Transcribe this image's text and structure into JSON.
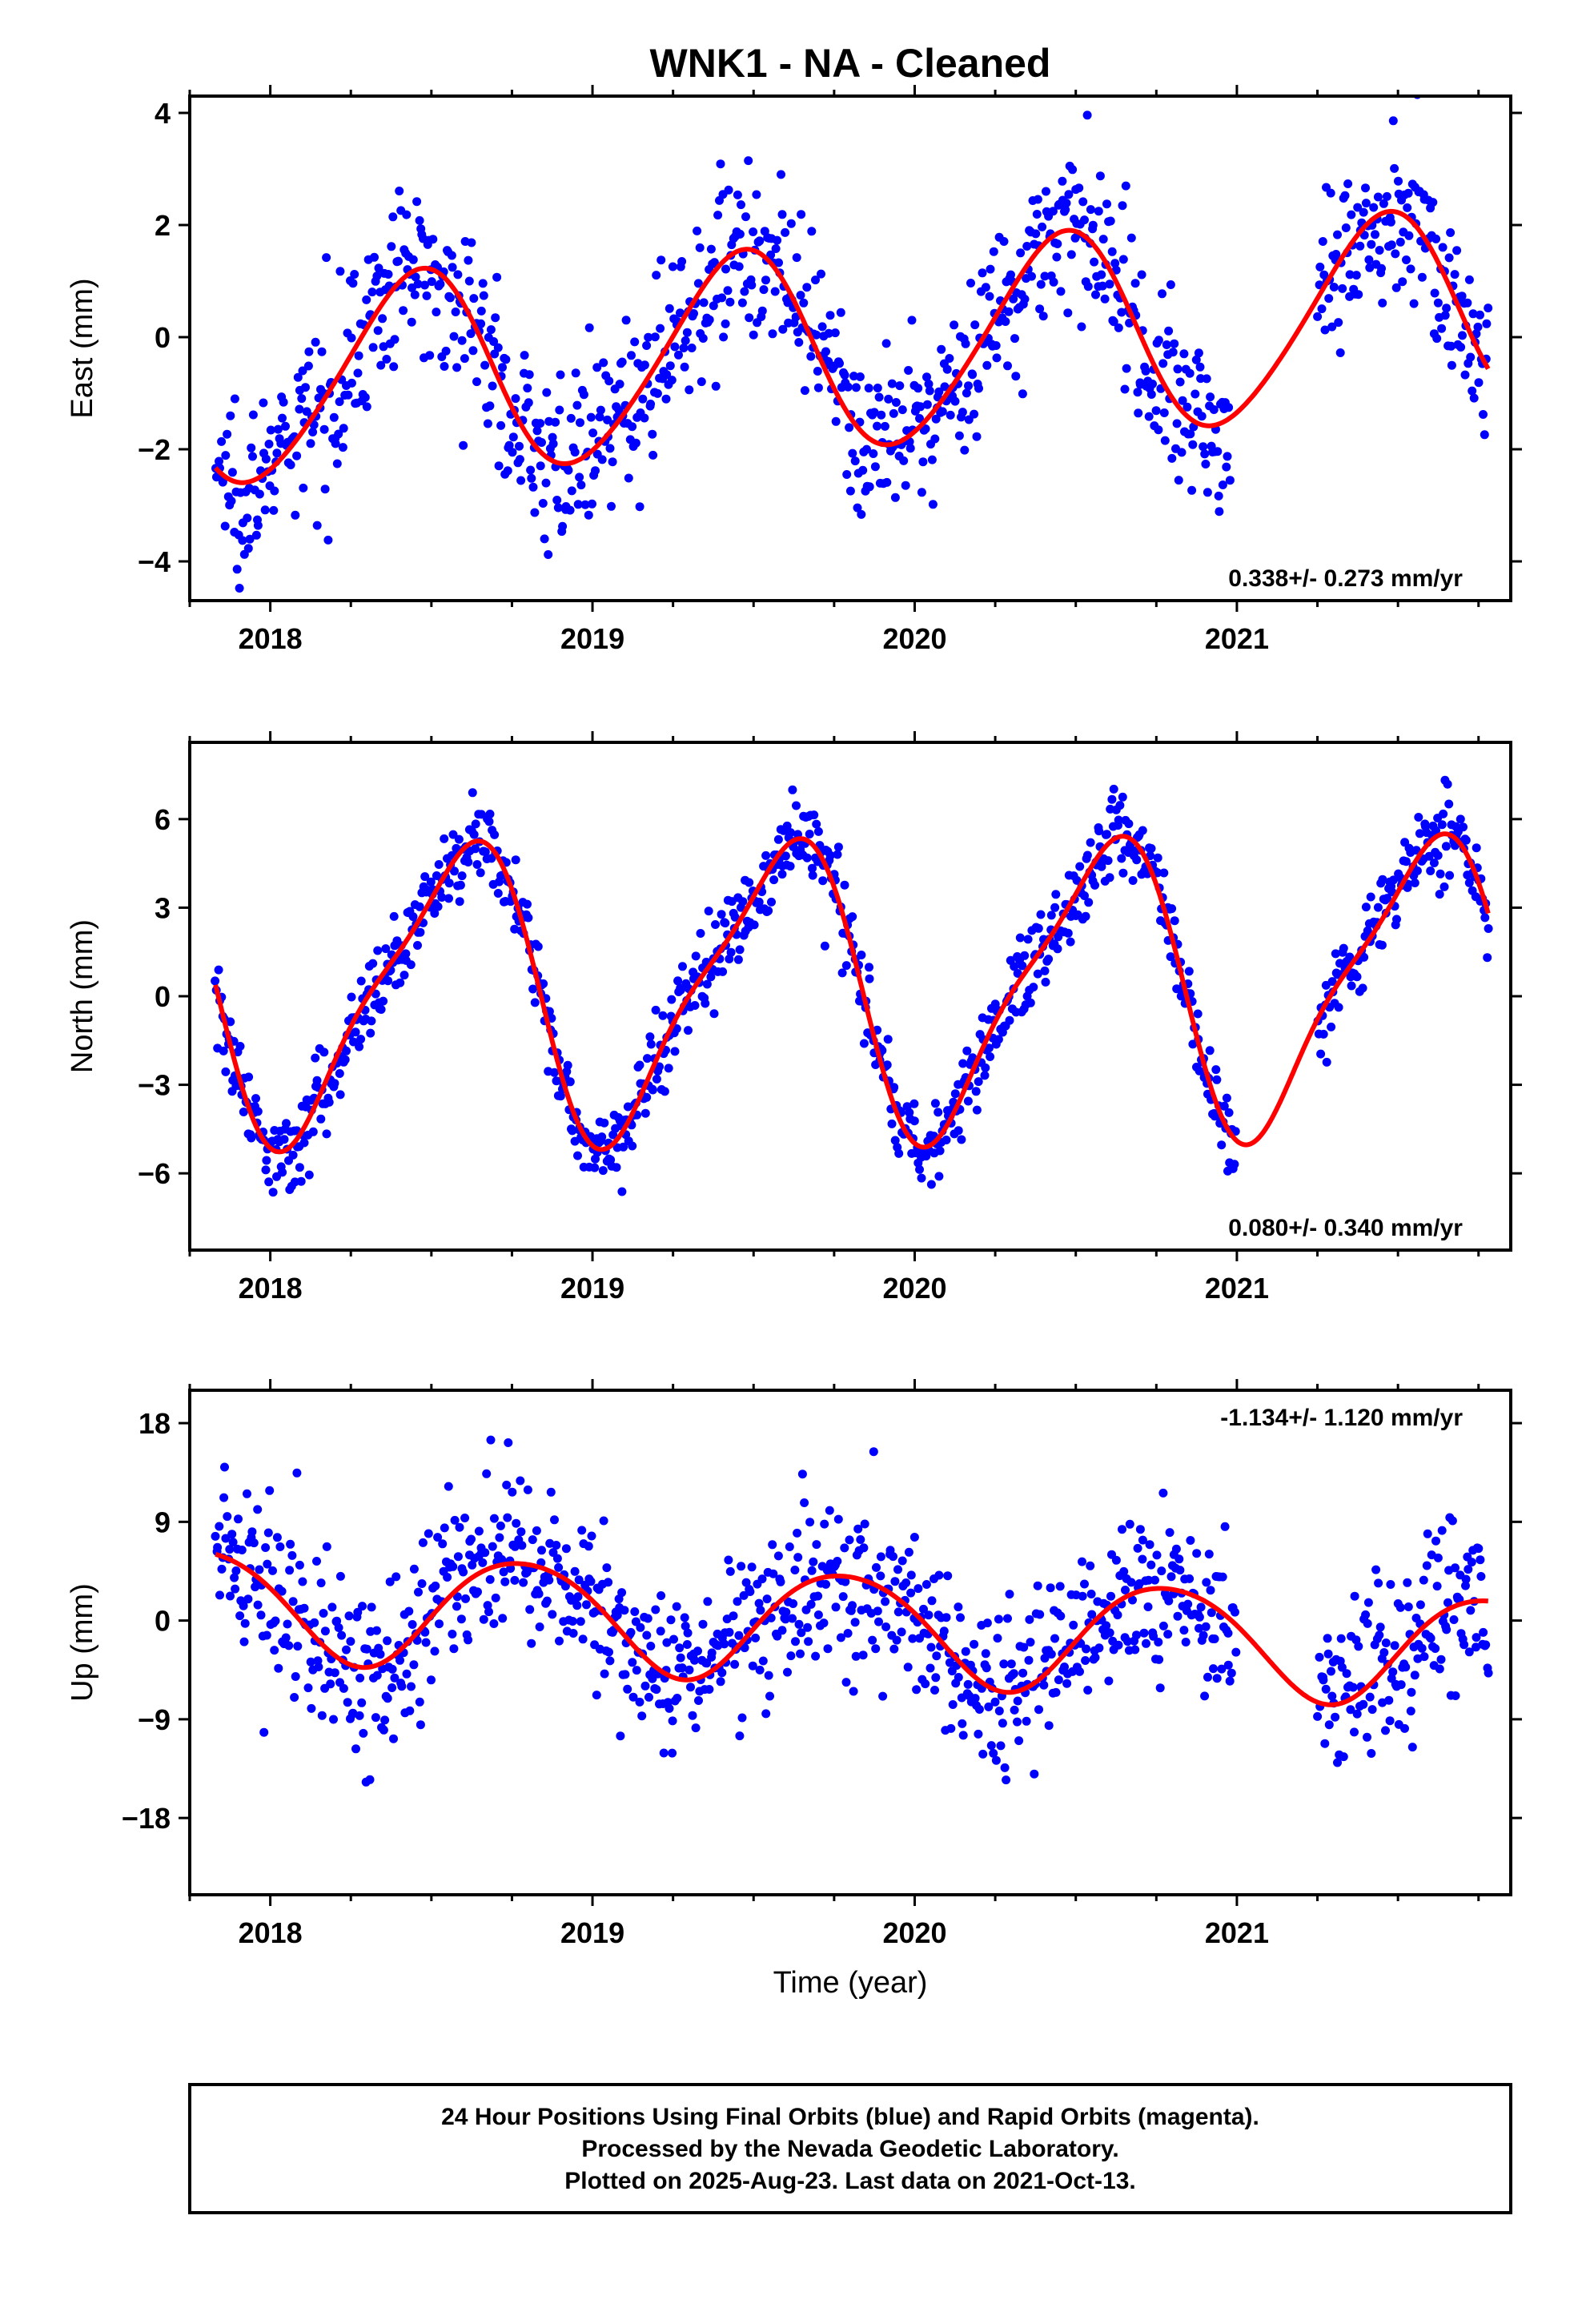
{
  "title": "WNK1  - NA - Cleaned",
  "colors": {
    "points": "#0000ff",
    "model": "#ff0000",
    "frame": "#000000"
  },
  "x_axis": {
    "label": "Time (year)",
    "ticks": [
      2018,
      2019,
      2020,
      2021
    ],
    "tick_labels": [
      "2018",
      "2019",
      "2020",
      "2021"
    ]
  },
  "footer": {
    "line1": "24 Hour Positions Using Final Orbits (blue) and Rapid Orbits (magenta).",
    "line2": "Processed by the Nevada Geodetic Laboratory.",
    "line3": "Plotted on 2025-Aug-23. Last data on 2021-Oct-13."
  },
  "chart_data": [
    {
      "type": "scatter",
      "ylabel": "East (mm)",
      "xlim": [
        2017.75,
        2021.85
      ],
      "ylim": [
        -4.7,
        4.3
      ],
      "yticks": [
        -4,
        -2,
        0,
        2,
        4
      ],
      "ytick_labels": [
        "−4",
        "−2",
        "0",
        "2",
        "4"
      ],
      "rate_label": "0.338+/- 0.273 mm/yr",
      "rate_position": "bottom-right",
      "model": {
        "offset": -0.2,
        "trend": 0.338,
        "t0": 2019.8,
        "ann_cos": -1.7,
        "ann_sin": 0.55,
        "semi_cos": 0.15,
        "semi_sin": 0.1
      },
      "scatter": {
        "sigma": 0.75,
        "count": 1100,
        "gap": [
          2020.98,
          2021.25
        ]
      },
      "series": [
        {
          "name": "Final Orbits",
          "color": "#0000ff"
        },
        {
          "name": "model",
          "color": "#ff0000"
        }
      ],
      "x_range_data": [
        2017.83,
        2021.78
      ]
    },
    {
      "type": "scatter",
      "ylabel": "North (mm)",
      "xlim": [
        2017.75,
        2021.85
      ],
      "ylim": [
        -8.6,
        8.6
      ],
      "yticks": [
        -6,
        -3,
        0,
        3,
        6
      ],
      "ytick_labels": [
        "−6",
        "−3",
        "0",
        "3",
        "6"
      ],
      "rate_label": "0.080+/- 0.340 mm/yr",
      "rate_position": "bottom-right",
      "model": {
        "offset": 0.3,
        "trend": 0.08,
        "t0": 2019.8,
        "ann_cos": -4.2,
        "ann_sin": -2.3,
        "semi_cos": -1.1,
        "semi_sin": 0.4
      },
      "scatter": {
        "sigma": 0.7,
        "count": 1100,
        "gap": [
          2021.0,
          2021.25
        ]
      },
      "series": [
        {
          "name": "Final Orbits",
          "color": "#0000ff"
        },
        {
          "name": "model",
          "color": "#ff0000"
        }
      ],
      "x_range_data": [
        2017.83,
        2021.78
      ]
    },
    {
      "type": "scatter",
      "ylabel": "Up (mm)",
      "xlim": [
        2017.75,
        2021.85
      ],
      "ylim": [
        -25.0,
        21.0
      ],
      "yticks": [
        -18,
        -9,
        0,
        9,
        18
      ],
      "ytick_labels": [
        "−18",
        "−9",
        "0",
        "9",
        "18"
      ],
      "rate_label": "-1.134+/- 1.120 mm/yr",
      "rate_position": "top-right",
      "model": {
        "offset": -0.5,
        "trend": -1.134,
        "t0": 2019.8,
        "ann_cos": 1.0,
        "ann_sin": -4.9,
        "semi_cos": 0.4,
        "semi_sin": 0.3
      },
      "scatter": {
        "sigma": 3.8,
        "count": 1100,
        "gap": [
          2021.0,
          2021.25
        ]
      },
      "series": [
        {
          "name": "Final Orbits",
          "color": "#0000ff"
        },
        {
          "name": "model",
          "color": "#ff0000"
        }
      ],
      "x_range_data": [
        2017.83,
        2021.78
      ]
    }
  ]
}
